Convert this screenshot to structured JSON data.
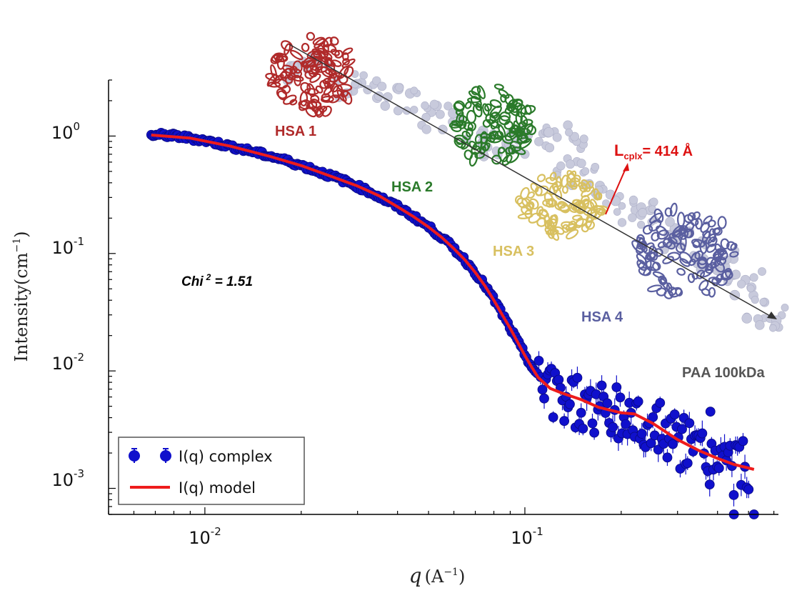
{
  "chart_data": {
    "type": "scatter",
    "x_scale": "log",
    "y_scale": "log",
    "xlim": [
      0.005,
      0.62
    ],
    "ylim": [
      0.0006,
      3.0
    ],
    "xlabel": "q",
    "xlabel_unit": "(A",
    "xlabel_unit_exp": "−1",
    "xlabel_unit_close": ")",
    "ylabel": "Intensity(cm",
    "ylabel_exp": "−1",
    "ylabel_close": ")",
    "x_ticks": [
      {
        "base": "10",
        "exp": "-2",
        "value": 0.01
      },
      {
        "base": "10",
        "exp": "-1",
        "value": 0.1
      }
    ],
    "y_ticks": [
      {
        "base": "10",
        "exp": "0",
        "value": 1
      },
      {
        "base": "10",
        "exp": "-1",
        "value": 0.1
      },
      {
        "base": "10",
        "exp": "-2",
        "value": 0.01
      },
      {
        "base": "10",
        "exp": "-3",
        "value": 0.001
      }
    ],
    "series": [
      {
        "name": "I(q) complex",
        "kind": "points_with_errorbars",
        "color": "#1010cc",
        "points": [
          [
            0.0068,
            1.02
          ],
          [
            0.0073,
            1.02
          ],
          [
            0.0078,
            1.01
          ],
          [
            0.0083,
            0.99
          ],
          [
            0.009,
            0.96
          ],
          [
            0.0097,
            0.93
          ],
          [
            0.0105,
            0.89
          ],
          [
            0.0113,
            0.85
          ],
          [
            0.0122,
            0.81
          ],
          [
            0.0132,
            0.77
          ],
          [
            0.0143,
            0.73
          ],
          [
            0.0155,
            0.69
          ],
          [
            0.0168,
            0.65
          ],
          [
            0.0182,
            0.61
          ],
          [
            0.0197,
            0.57
          ],
          [
            0.0213,
            0.53
          ],
          [
            0.023,
            0.49
          ],
          [
            0.0249,
            0.455
          ],
          [
            0.027,
            0.42
          ],
          [
            0.0292,
            0.385
          ],
          [
            0.0316,
            0.35
          ],
          [
            0.0342,
            0.315
          ],
          [
            0.037,
            0.28
          ],
          [
            0.04,
            0.25
          ],
          [
            0.0433,
            0.22
          ],
          [
            0.0469,
            0.19
          ],
          [
            0.0508,
            0.163
          ],
          [
            0.055,
            0.137
          ],
          [
            0.0595,
            0.113
          ],
          [
            0.0644,
            0.09
          ],
          [
            0.0697,
            0.07
          ],
          [
            0.0755,
            0.052
          ],
          [
            0.0817,
            0.037
          ],
          [
            0.0885,
            0.025
          ],
          [
            0.0958,
            0.017
          ],
          [
            0.1037,
            0.0115
          ],
          [
            0.112,
            0.0082
          ],
          [
            0.121,
            0.0066
          ],
          [
            0.131,
            0.0062
          ],
          [
            0.142,
            0.0058
          ],
          [
            0.154,
            0.0052
          ],
          [
            0.167,
            0.0048
          ],
          [
            0.181,
            0.0044
          ],
          [
            0.196,
            0.0042
          ],
          [
            0.212,
            0.0041
          ],
          [
            0.229,
            0.0037
          ],
          [
            0.248,
            0.0034
          ],
          [
            0.268,
            0.003
          ],
          [
            0.29,
            0.0026
          ],
          [
            0.314,
            0.0023
          ],
          [
            0.34,
            0.0022
          ],
          [
            0.368,
            0.0019
          ],
          [
            0.399,
            0.0017
          ],
          [
            0.432,
            0.0016
          ],
          [
            0.468,
            0.0015
          ],
          [
            0.507,
            0.0013
          ],
          [
            0.52,
            0.0006
          ],
          [
            0.45,
            0.0006
          ],
          [
            0.38,
            0.0045
          ]
        ]
      },
      {
        "name": "I(q) model",
        "kind": "line",
        "color": "#ee1c1c",
        "points": [
          [
            0.0068,
            1.02
          ],
          [
            0.009,
            0.96
          ],
          [
            0.012,
            0.82
          ],
          [
            0.016,
            0.67
          ],
          [
            0.02,
            0.56
          ],
          [
            0.025,
            0.45
          ],
          [
            0.03,
            0.375
          ],
          [
            0.035,
            0.31
          ],
          [
            0.04,
            0.25
          ],
          [
            0.045,
            0.205
          ],
          [
            0.05,
            0.168
          ],
          [
            0.055,
            0.137
          ],
          [
            0.06,
            0.11
          ],
          [
            0.065,
            0.088
          ],
          [
            0.07,
            0.069
          ],
          [
            0.075,
            0.053
          ],
          [
            0.08,
            0.04
          ],
          [
            0.085,
            0.03
          ],
          [
            0.09,
            0.023
          ],
          [
            0.095,
            0.0175
          ],
          [
            0.1,
            0.0135
          ],
          [
            0.105,
            0.0108
          ],
          [
            0.11,
            0.0088
          ],
          [
            0.12,
            0.0071
          ],
          [
            0.13,
            0.0065
          ],
          [
            0.15,
            0.0057
          ],
          [
            0.17,
            0.0049
          ],
          [
            0.2,
            0.0044
          ],
          [
            0.22,
            0.0043
          ],
          [
            0.25,
            0.0036
          ],
          [
            0.3,
            0.0026
          ],
          [
            0.35,
            0.0021
          ],
          [
            0.4,
            0.0018
          ],
          [
            0.45,
            0.0016
          ],
          [
            0.52,
            0.00145
          ]
        ]
      }
    ],
    "legend": {
      "position": "bottom-left",
      "entries": [
        "I(q) complex",
        "I(q) model"
      ]
    },
    "annotations": {
      "chi": "Chi",
      "chi_exp": "2",
      "chi_rest": " = 1.51",
      "hsa1": "HSA 1",
      "hsa2": "HSA 2",
      "hsa3": "HSA 3",
      "hsa4": "HSA 4",
      "l_main": "L",
      "l_sub": "cplx",
      "l_rest": "= 414 Å",
      "paa": "PAA 100kDa"
    },
    "colors": {
      "hsa1": "#b02a2a",
      "hsa2": "#2a7a2a",
      "hsa3": "#d8c060",
      "hsa4": "#5a5fa0",
      "linker": "#c8cadc",
      "arrow": "#333333",
      "l_label": "#dd1111",
      "paa": "#555555"
    }
  }
}
